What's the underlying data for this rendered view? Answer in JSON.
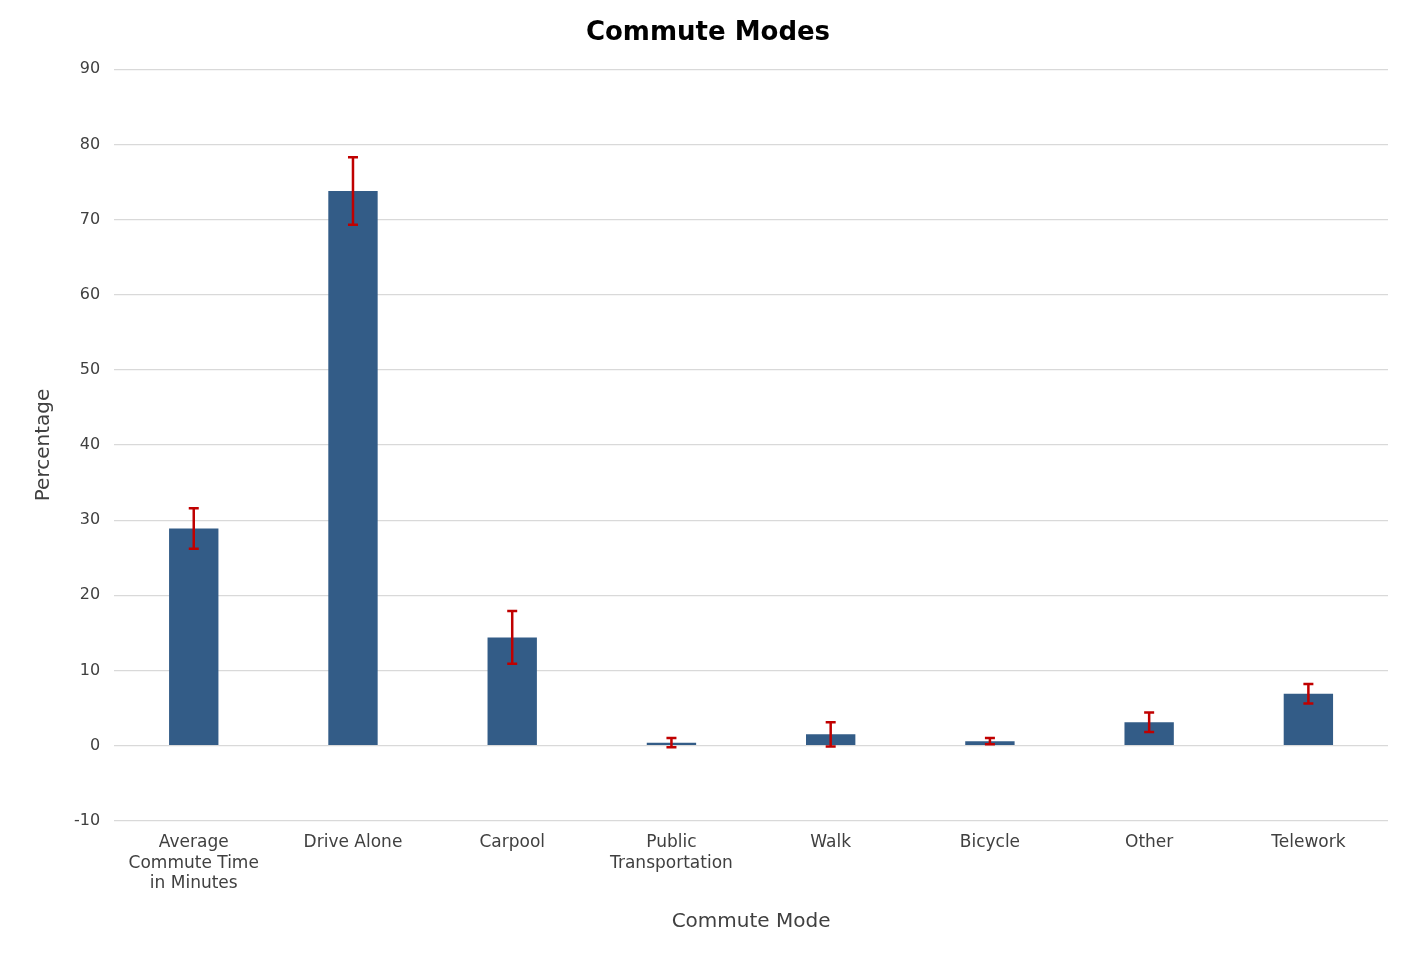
{
  "chart_data": {
    "type": "bar",
    "title": "Commute Modes",
    "xlabel": "Commute Mode",
    "ylabel": "Percentage",
    "categories": [
      "Average Commute Time in Minutes",
      "Drive Alone",
      "Carpool",
      "Public Transportation",
      "Walk",
      "Bicycle",
      "Other",
      "Telework"
    ],
    "values": [
      28.9,
      73.8,
      14.4,
      0.4,
      1.5,
      0.6,
      3.1,
      6.9
    ],
    "errors": [
      2.7,
      4.5,
      3.5,
      0.6,
      1.6,
      0.4,
      1.3,
      1.3
    ],
    "color": "#335c87",
    "ylim": [
      -10,
      90
    ],
    "yticks": [
      -10,
      0,
      10,
      20,
      30,
      40,
      50,
      60,
      70,
      80,
      90
    ],
    "grid": "y",
    "legend": false
  }
}
